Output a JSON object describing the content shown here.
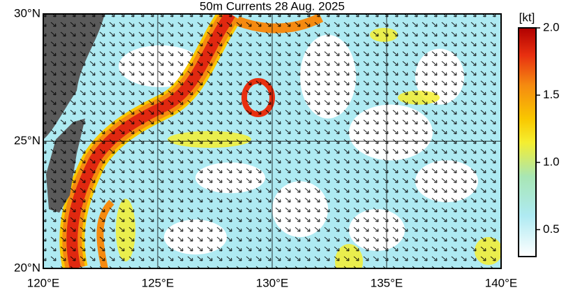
{
  "title": "50m Currents  28 Aug. 2025",
  "map": {
    "xlim": [
      120,
      140
    ],
    "ylim": [
      20,
      30
    ],
    "xticks": [
      {
        "value": 120,
        "label": "120°E"
      },
      {
        "value": 125,
        "label": "125°E"
      },
      {
        "value": 130,
        "label": "130°E"
      },
      {
        "value": 135,
        "label": "135°E"
      },
      {
        "value": 140,
        "label": "140°E"
      }
    ],
    "yticks": [
      {
        "value": 20,
        "label": "20°N"
      },
      {
        "value": 25,
        "label": "25°N"
      },
      {
        "value": 30,
        "label": "30°N"
      }
    ]
  },
  "colorbar": {
    "unit": "[kt]",
    "clim": [
      0.3,
      2.0
    ],
    "ticks": [
      0.5,
      {
        "value": 1,
        "label": "1.0"
      },
      1.5,
      {
        "value": 2,
        "label": "2.0"
      }
    ]
  }
}
